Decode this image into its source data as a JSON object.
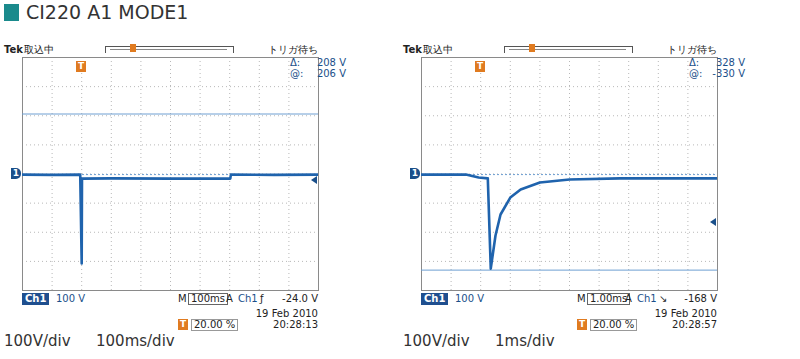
{
  "title": "CI220 A1 MODE1",
  "chart_data": [
    {
      "type": "line",
      "color": "#1f63ad",
      "x": [
        -200,
        -100,
        -5,
        0,
        1,
        100,
        300,
        502,
        504,
        650,
        800
      ],
      "values": [
        -2,
        -3,
        -2,
        -307,
        -16,
        -15,
        -16,
        -16,
        -2,
        -3,
        -2
      ],
      "xlim": [
        -200,
        800
      ],
      "xticks": [
        -200,
        -100,
        0,
        100,
        200,
        300,
        400,
        500,
        600,
        700,
        800
      ],
      "ylim": [
        -400,
        400
      ],
      "yticks": [
        -400,
        -300,
        -200,
        -100,
        0,
        100,
        200,
        300,
        400
      ],
      "grid": true,
      "tick_labels": false,
      "cursors": [
        {
          "value": 206,
          "line_style": "solid"
        },
        {
          "value": -2,
          "line_style": "dotted"
        }
      ],
      "status": {
        "brand": "Tek",
        "state": "取込中",
        "trigger_state": "トリガ待ち"
      },
      "readout": [
        {
          "label": "Δ:",
          "text": "208 V"
        },
        {
          "label": "@:",
          "text": "206 V"
        }
      ],
      "ground_marker": {
        "label": "1",
        "value": 0
      },
      "trigger": {
        "label": "T",
        "time": 0,
        "level": -24,
        "position_label": "20.00 %"
      },
      "footer": {
        "channel": "Ch1",
        "scale": "100 V",
        "timebase_label": "M",
        "timebase": "100ms",
        "trigger_mode": "A",
        "trigger_source": "Ch1",
        "slope": "ƒ",
        "trigger_level": "-24.0 V",
        "date": "19 Feb 2010",
        "time": "20:28:13"
      },
      "caption": [
        "100V/div",
        "100ms/div"
      ]
    },
    {
      "type": "line",
      "color": "#1f63ad",
      "x": [
        -2,
        -0.5,
        -0.07,
        0.24,
        0.34,
        0.5,
        0.67,
        1.0,
        1.35,
        2.0,
        3.0,
        4.7,
        8
      ],
      "values": [
        -2,
        -2,
        -12,
        -15,
        -325,
        -211,
        -139,
        -81,
        -53,
        -29,
        -19,
        -15,
        -15
      ],
      "xlim": [
        -2,
        8
      ],
      "xticks": [
        -2,
        -1,
        0,
        1,
        2,
        3,
        4,
        5,
        6,
        7,
        8
      ],
      "ylim": [
        -400,
        400
      ],
      "yticks": [
        -400,
        -300,
        -200,
        -100,
        0,
        100,
        200,
        300,
        400
      ],
      "grid": true,
      "tick_labels": false,
      "cursors": [
        {
          "value": -330,
          "line_style": "solid"
        },
        {
          "value": -2,
          "line_style": "dotted"
        }
      ],
      "status": {
        "brand": "Tek",
        "state": "取込中",
        "trigger_state": "トリガ待ち"
      },
      "readout": [
        {
          "label": "Δ:",
          "text": "328 V"
        },
        {
          "label": "@:",
          "text": "-330 V"
        }
      ],
      "ground_marker": {
        "label": "1",
        "value": 0
      },
      "trigger": {
        "label": "T",
        "time": 0,
        "level": -168,
        "position_label": "20.00 %"
      },
      "footer": {
        "channel": "Ch1",
        "scale": "100 V",
        "timebase_label": "M",
        "timebase": "1.00ms",
        "trigger_mode": "A",
        "trigger_source": "Ch1",
        "slope": "↘",
        "trigger_level": "-168 V",
        "date": "19 Feb 2010",
        "time": "20:28:57"
      },
      "caption": [
        "100V/div",
        "1ms/div"
      ]
    }
  ]
}
